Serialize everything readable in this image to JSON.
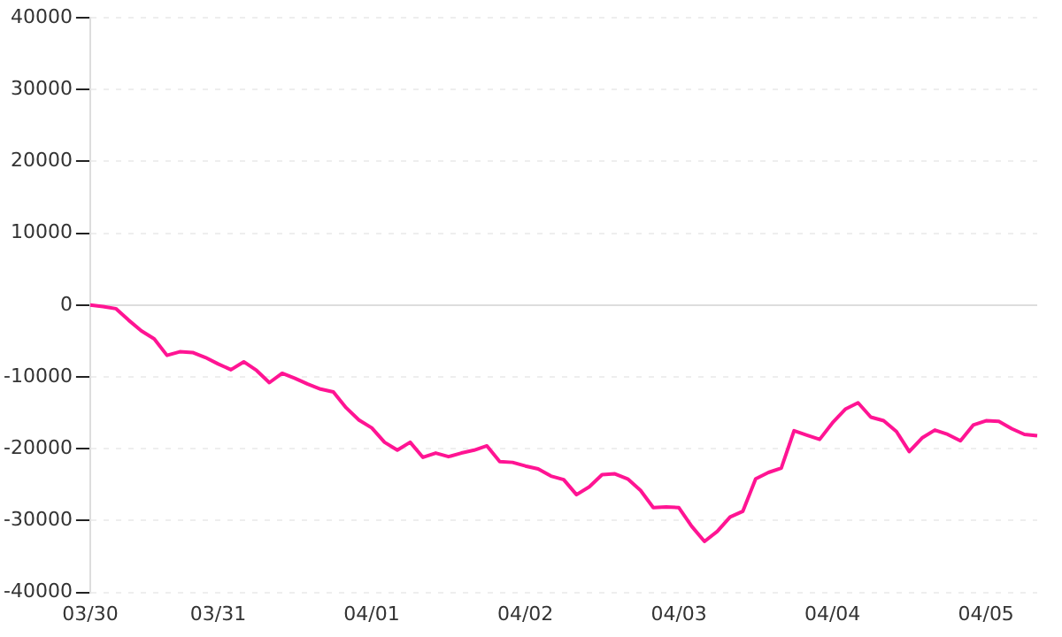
{
  "chart_data": {
    "type": "line",
    "categories": [
      "03/30",
      null,
      null,
      null,
      null,
      null,
      null,
      null,
      null,
      null,
      "03/31",
      null,
      null,
      null,
      null,
      null,
      null,
      null,
      null,
      null,
      null,
      null,
      "04/01",
      null,
      null,
      null,
      null,
      null,
      null,
      null,
      null,
      null,
      null,
      null,
      "04/02",
      null,
      null,
      null,
      null,
      null,
      null,
      null,
      null,
      null,
      null,
      null,
      "04/03",
      null,
      null,
      null,
      null,
      null,
      null,
      null,
      null,
      null,
      null,
      null,
      "04/04",
      null,
      null,
      null,
      null,
      null,
      null,
      null,
      null,
      null,
      null,
      null,
      "04/05",
      null,
      null,
      null,
      null
    ],
    "series": [
      {
        "color": "#ff1493",
        "values": [
          0,
          -200,
          -500,
          -2100,
          -3600,
          -4700,
          -7000,
          -6500,
          -6600,
          -7300,
          -8200,
          -9000,
          -7900,
          -9100,
          -10800,
          -9500,
          -10200,
          -11000,
          -11700,
          -12100,
          -14300,
          -16000,
          -17100,
          -19100,
          -20200,
          -19100,
          -21200,
          -20600,
          -21100,
          -20600,
          -20200,
          -19600,
          -21800,
          -21900,
          -22400,
          -22800,
          -23800,
          -24300,
          -26400,
          -25300,
          -23600,
          -23500,
          -24200,
          -25800,
          -28200,
          -28100,
          -28200,
          -30800,
          -32900,
          -31500,
          -29500,
          -28700,
          -24200,
          -23300,
          -22700,
          -17500,
          -18100,
          -18700,
          -16400,
          -14500,
          -13600,
          -15600,
          -16100,
          -17600,
          -20400,
          -18500,
          -17400,
          -18000,
          -18900,
          -16700,
          -16100,
          -16200,
          -17200,
          -18000,
          -18200
        ]
      }
    ],
    "ylim": [
      -40000,
      40000
    ],
    "yticks": [
      -40000,
      -30000,
      -20000,
      -10000,
      0,
      10000,
      20000,
      30000,
      40000
    ],
    "grid": "y",
    "marker": "none",
    "line_style": "solid"
  }
}
